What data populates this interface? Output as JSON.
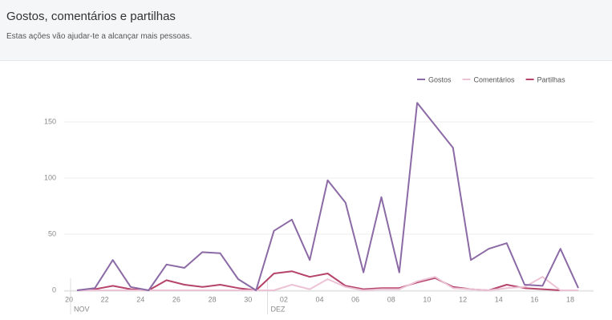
{
  "header": {
    "title": "Gostos, comentários e partilhas",
    "subtitle": "Estas ações vão ajudar-te a alcançar mais pessoas."
  },
  "chart_data": {
    "type": "line",
    "categories": [
      "20",
      null,
      "22",
      null,
      "24",
      null,
      "26",
      null,
      "28",
      null,
      "30",
      null,
      "02",
      null,
      "04",
      null,
      "06",
      null,
      "08",
      null,
      "10",
      null,
      "12",
      null,
      "14",
      null,
      "16",
      null,
      "18"
    ],
    "month_labels": [
      "NOV",
      "DEZ"
    ],
    "series": [
      {
        "name": "Gostos",
        "color": "#8b6aa5",
        "values": [
          0,
          2,
          27,
          3,
          0,
          23,
          20,
          34,
          33,
          10,
          0,
          53,
          63,
          27,
          98,
          78,
          16,
          83,
          16,
          167,
          147,
          127,
          27,
          37,
          42,
          5,
          4,
          37,
          2
        ]
      },
      {
        "name": "Comentários",
        "color": "#ecc3d5",
        "values": [
          0,
          0,
          0,
          0,
          0,
          0,
          0,
          0,
          0,
          0,
          0,
          0,
          5,
          1,
          10,
          3,
          0,
          1,
          1,
          8,
          12,
          2,
          1,
          0,
          2,
          3,
          12,
          0,
          0
        ]
      },
      {
        "name": "Partilhas",
        "color": "#b5436a",
        "values": [
          0,
          1,
          4,
          1,
          0,
          9,
          5,
          3,
          5,
          2,
          0,
          15,
          17,
          12,
          15,
          4,
          1,
          2,
          2,
          7,
          11,
          3,
          1,
          0,
          5,
          2,
          1,
          0,
          0
        ]
      }
    ],
    "ylim": [
      0,
      175
    ],
    "yticks": [
      0,
      50,
      100,
      150
    ],
    "grid": true,
    "legend": "top-right"
  }
}
